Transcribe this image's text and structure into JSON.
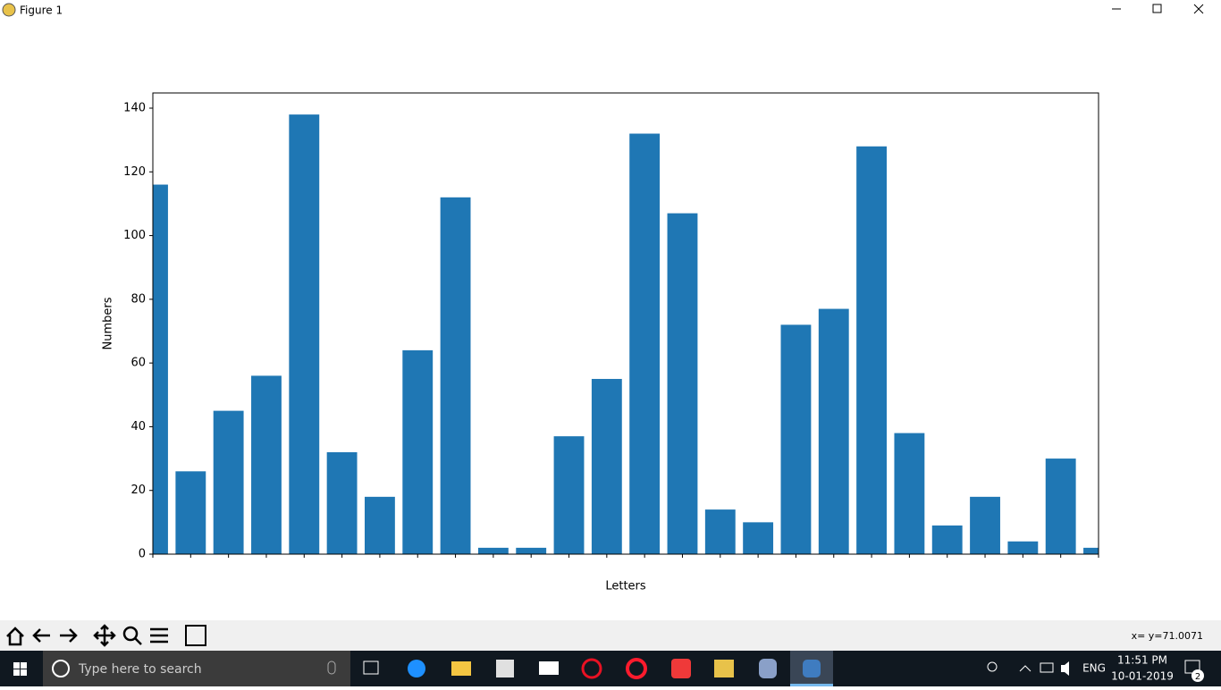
{
  "window": {
    "title": "Figure 1"
  },
  "chart_data": {
    "type": "bar",
    "categories": [
      null,
      null,
      null,
      null,
      null,
      null,
      null,
      null,
      null,
      null,
      null,
      null,
      null,
      null,
      null,
      null,
      null,
      null,
      null,
      null,
      null,
      null,
      null,
      null,
      null,
      null
    ],
    "values": [
      116,
      26,
      45,
      56,
      138,
      32,
      18,
      64,
      112,
      2,
      2,
      37,
      55,
      132,
      107,
      14,
      10,
      72,
      77,
      128,
      38,
      9,
      18,
      4,
      30,
      2
    ],
    "color": "#1f77b4",
    "x_label": "Letters",
    "y_label": "Numbers",
    "ylim": [
      0,
      140
    ],
    "yticks": [
      0,
      20,
      40,
      60,
      80,
      100,
      120,
      140
    ]
  },
  "status": {
    "coords": "x= y=71.0071"
  },
  "taskbar": {
    "search": "Type here to search",
    "language": "ENG",
    "time": "11:51 PM",
    "date": "10-01-2019",
    "notifications": "2"
  }
}
